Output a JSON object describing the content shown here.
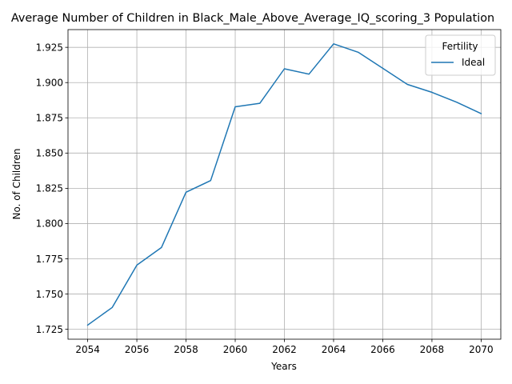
{
  "chart_data": {
    "type": "line",
    "title": "Average Number of Children in Black_Male_Above_Average_IQ_scoring_3 Population",
    "xlabel": "Years",
    "ylabel": "No. of Children",
    "x": [
      2054,
      2055,
      2056,
      2057,
      2058,
      2059,
      2060,
      2061,
      2062,
      2063,
      2064,
      2065,
      2066,
      2067,
      2068,
      2069,
      2070
    ],
    "series": [
      {
        "name": "Ideal",
        "color": "#1f77b4",
        "values": [
          1.728,
          1.7405,
          1.7705,
          1.783,
          1.8222,
          1.8305,
          1.8828,
          1.8853,
          1.9098,
          1.906,
          1.9275,
          1.9215,
          1.9101,
          1.8987,
          1.8931,
          1.8861,
          1.878
        ]
      }
    ],
    "xticks": [
      2054,
      2056,
      2058,
      2060,
      2062,
      2064,
      2066,
      2068,
      2070
    ],
    "xtick_labels": [
      "2054",
      "2056",
      "2058",
      "2060",
      "2062",
      "2064",
      "2066",
      "2068",
      "2070"
    ],
    "yticks": [
      1.725,
      1.75,
      1.775,
      1.8,
      1.825,
      1.85,
      1.875,
      1.9,
      1.925
    ],
    "ytick_labels": [
      "1.725",
      "1.750",
      "1.775",
      "1.800",
      "1.825",
      "1.850",
      "1.875",
      "1.900",
      "1.925"
    ],
    "xlim": [
      2053.2,
      2070.8
    ],
    "ylim": [
      1.71797,
      1.93758
    ],
    "grid": true,
    "legend": {
      "title": "Fertility",
      "placement": "top-right"
    }
  }
}
